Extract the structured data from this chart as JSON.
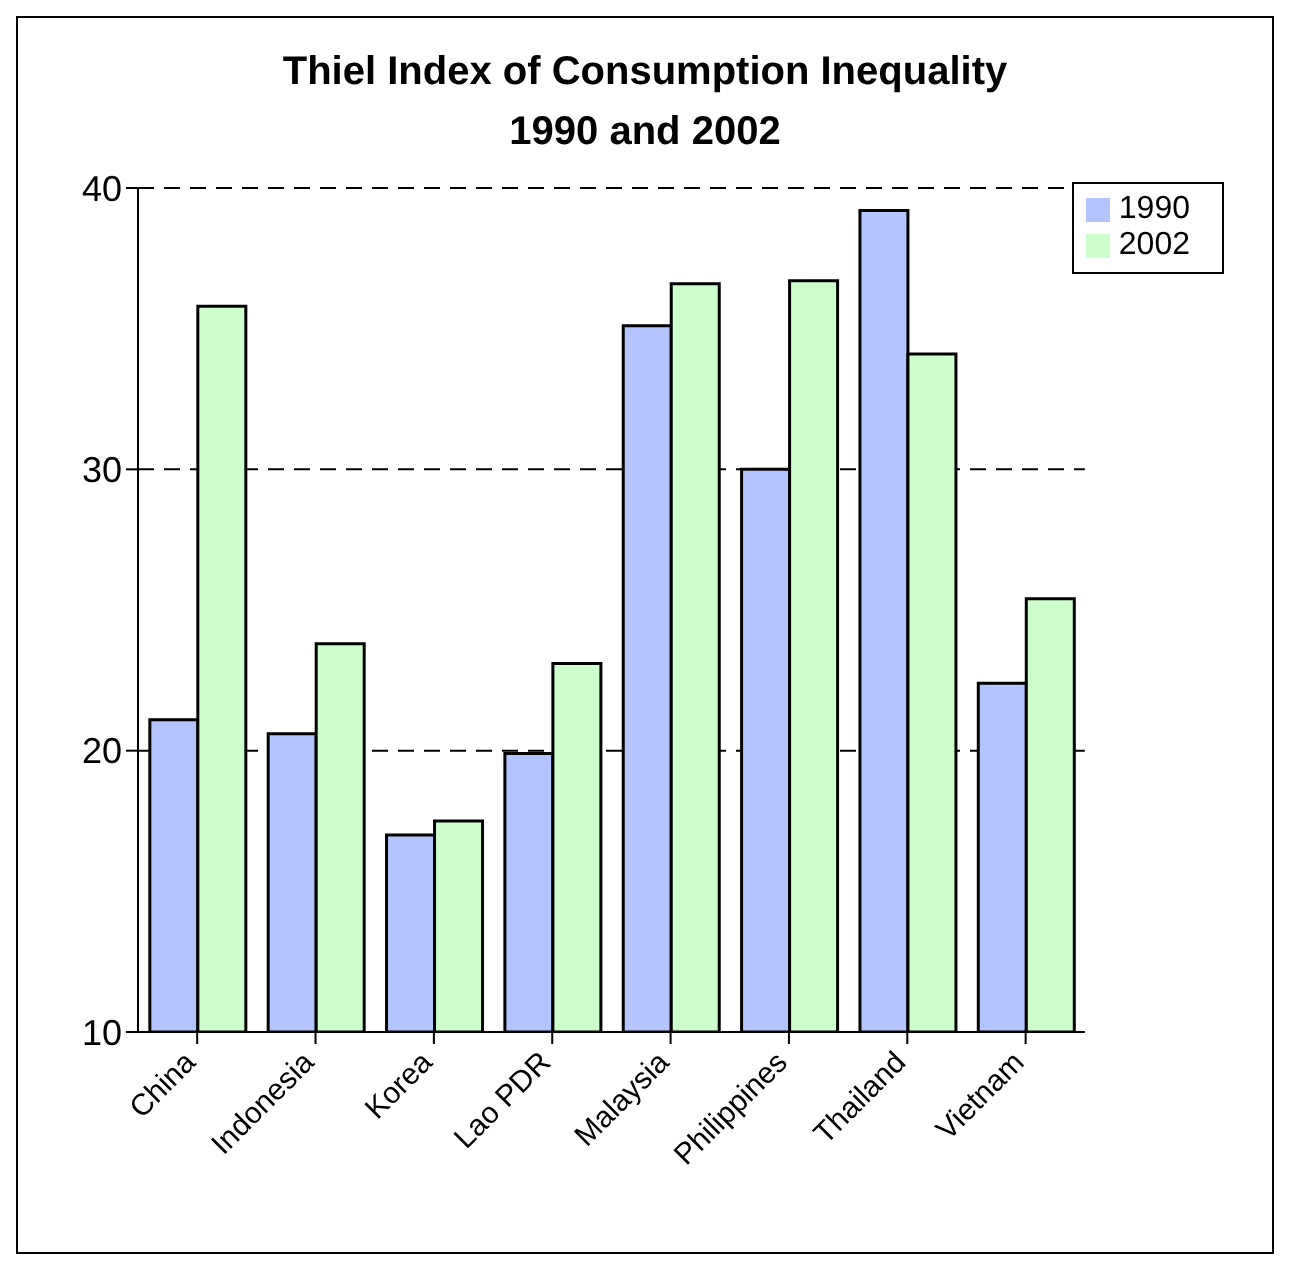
{
  "chart_data": {
    "type": "bar",
    "title": "Thiel Index of Consumption Inequality",
    "subtitle": "1990 and 2002",
    "categories": [
      "China",
      "Indonesia",
      "Korea",
      "Lao PDR",
      "Malaysia",
      "Philippines",
      "Thailand",
      "Vietnam"
    ],
    "series": [
      {
        "name": "1990",
        "color": "#b4c4ff",
        "values": [
          21.1,
          20.6,
          17.0,
          19.9,
          35.1,
          30.0,
          39.2,
          22.4
        ]
      },
      {
        "name": "2002",
        "color": "#ccffcc",
        "values": [
          35.8,
          23.8,
          17.5,
          23.1,
          36.6,
          36.7,
          34.1,
          25.4
        ]
      }
    ],
    "ylim": [
      10,
      40
    ],
    "yticks": [
      10,
      20,
      30,
      40
    ],
    "grid": "y",
    "legend": "top right"
  }
}
